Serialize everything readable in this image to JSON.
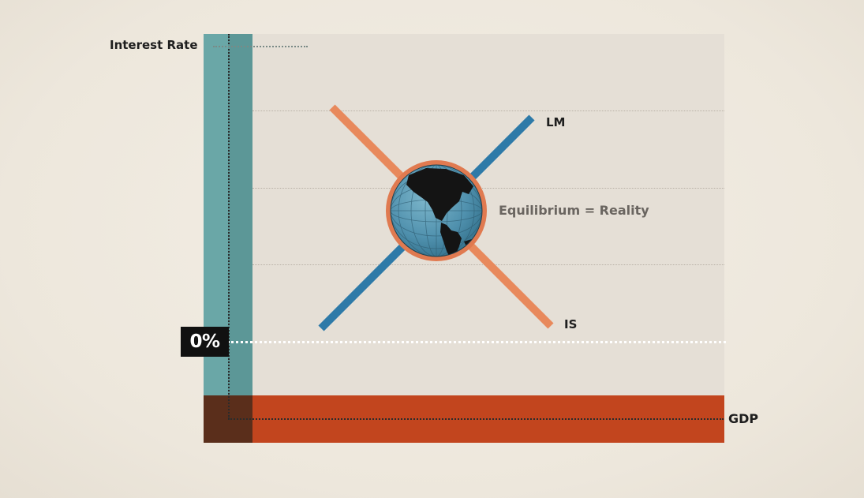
{
  "axes": {
    "y_label": "Interest Rate",
    "x_label": "GDP",
    "zero_marker": "0%"
  },
  "curves": {
    "lm_label": "LM",
    "is_label": "IS",
    "equilibrium_label": "Equilibrium = Reality"
  },
  "colors": {
    "background": "#efe9df",
    "plot_area": "#e5dfd6",
    "y_axis_band": "#6aa7a7",
    "x_axis_band": "#c2451e",
    "corner": "#5a2e1b",
    "lm_curve": "#2e7aa8",
    "is_curve": "#e8895c",
    "globe_ring": "#e07a50",
    "globe_ocean": "#4f90ad",
    "globe_land": "#141414",
    "zero_badge": "#111111"
  },
  "icons": {
    "equilibrium": "globe-icon"
  }
}
